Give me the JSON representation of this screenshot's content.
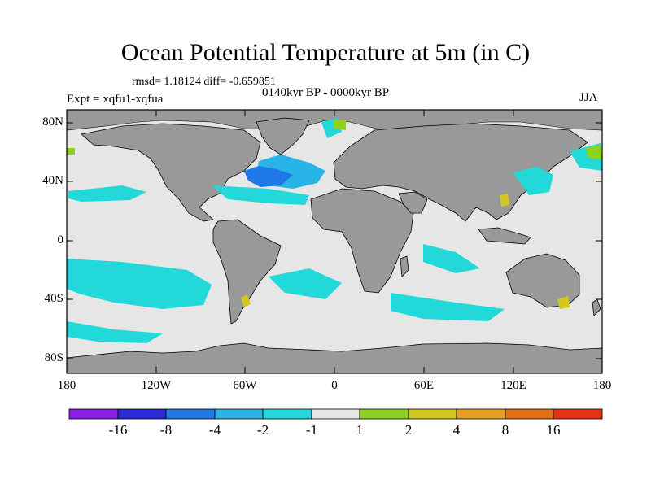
{
  "title": "Ocean Potential Temperature at 5m (in C)",
  "stats": "rmsd= 1.18124 diff= -0.659851",
  "experiment": "Expt = xqfu1-xqfua",
  "period": "0140kyr BP - 0000kyr BP",
  "season": "JJA",
  "lat_ticks": [
    "80N",
    "40N",
    "0",
    "40S",
    "80S"
  ],
  "lon_ticks": [
    "180",
    "120W",
    "60W",
    "0",
    "60E",
    "120E",
    "180"
  ],
  "colorbar": {
    "labels": [
      "-16",
      "-8",
      "-4",
      "-2",
      "-1",
      "1",
      "2",
      "4",
      "8",
      "16"
    ],
    "colors": [
      "#8b1ee6",
      "#2a2ad8",
      "#1e78e6",
      "#28b4e6",
      "#22d8d8",
      "#e6e6e6",
      "#8cd21e",
      "#d2c81e",
      "#e6a01e",
      "#e66e14",
      "#e63214"
    ]
  },
  "colors": {
    "land": "#999999",
    "ocean_neutral": "#e6e6e6",
    "cool_1": "#22d8d8",
    "cool_2": "#28b4e6",
    "cool_4": "#1e78e6",
    "warm_1": "#8cd21e",
    "warm_2": "#d2c81e"
  }
}
